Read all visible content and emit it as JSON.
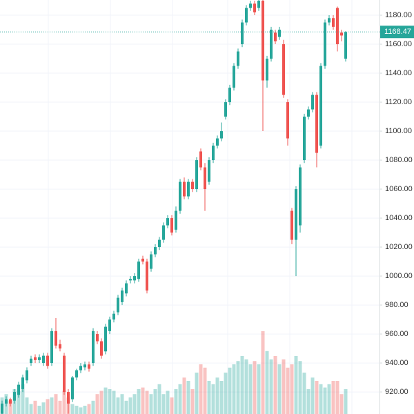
{
  "chart_data": {
    "type": "candlestick",
    "open": [
      905,
      912,
      915,
      914,
      918,
      922,
      928,
      940,
      944,
      942,
      940,
      945,
      940,
      962,
      953,
      945,
      920,
      915,
      930,
      935,
      937,
      939,
      940,
      960,
      955,
      948,
      962,
      970,
      975,
      982,
      988,
      997,
      997,
      998,
      1012,
      1010,
      1005,
      1015,
      1020,
      1025,
      1035,
      1040,
      1032,
      1045,
      1065,
      1055,
      1065,
      1060,
      1086,
      1075,
      1065,
      1080,
      1090,
      1095,
      1110,
      1120,
      1130,
      1145,
      1160,
      1175,
      1185,
      1188,
      1185,
      1190,
      1135,
      1150,
      1168,
      1165,
      1160,
      1120,
      1045,
      1025,
      1035,
      1080,
      1110,
      1115,
      1125,
      1090,
      1145,
      1175,
      1178,
      1185,
      1168,
      1150
    ],
    "high": [
      914,
      917,
      916,
      922,
      927,
      932,
      937,
      945,
      946,
      946,
      947,
      947,
      964,
      971,
      956,
      947,
      922,
      931,
      936,
      940,
      941,
      941,
      964,
      962,
      957,
      967,
      972,
      976,
      987,
      992,
      997,
      1000,
      1002,
      1012,
      1014,
      1012,
      1017,
      1022,
      1027,
      1037,
      1042,
      1042,
      1048,
      1067,
      1068,
      1067,
      1067,
      1082,
      1088,
      1078,
      1082,
      1092,
      1097,
      1106,
      1122,
      1132,
      1147,
      1157,
      1177,
      1187,
      1190,
      1190,
      1191,
      1191,
      1152,
      1172,
      1170,
      1172,
      1163,
      1122,
      1047,
      1062,
      1077,
      1112,
      1117,
      1127,
      1127,
      1147,
      1177,
      1180,
      1180,
      1186,
      1170,
      1169
    ],
    "low": [
      903,
      910,
      910,
      912,
      916,
      920,
      926,
      938,
      940,
      940,
      938,
      936,
      938,
      950,
      948,
      918,
      905,
      913,
      928,
      933,
      935,
      934,
      938,
      953,
      943,
      946,
      960,
      968,
      973,
      980,
      986,
      995,
      995,
      996,
      1008,
      988,
      1003,
      1013,
      1018,
      1023,
      1033,
      1028,
      1030,
      1043,
      1053,
      1053,
      1058,
      1058,
      1073,
      1045,
      1063,
      1078,
      1088,
      1093,
      1108,
      1118,
      1128,
      1143,
      1158,
      1173,
      1183,
      1180,
      1183,
      1100,
      1130,
      1148,
      1160,
      1163,
      1123,
      1090,
      1022,
      1000,
      1030,
      1078,
      1108,
      1113,
      1075,
      1088,
      1143,
      1173,
      1170,
      1155,
      1162,
      1148
    ],
    "close": [
      912,
      915,
      912,
      920,
      925,
      930,
      935,
      943,
      942,
      944,
      945,
      938,
      962,
      952,
      950,
      920,
      912,
      930,
      935,
      938,
      939,
      936,
      962,
      955,
      945,
      965,
      970,
      974,
      985,
      990,
      995,
      998,
      1000,
      1010,
      1010,
      990,
      1015,
      1020,
      1025,
      1035,
      1040,
      1030,
      1045,
      1065,
      1055,
      1065,
      1060,
      1080,
      1075,
      1060,
      1080,
      1090,
      1095,
      1100,
      1120,
      1130,
      1145,
      1155,
      1175,
      1185,
      1188,
      1182,
      1190,
      1135,
      1150,
      1170,
      1162,
      1170,
      1125,
      1095,
      1025,
      1060,
      1075,
      1110,
      1115,
      1125,
      1085,
      1145,
      1175,
      1178,
      1172,
      1160,
      1166,
      1168.47
    ],
    "volume": [
      10,
      12,
      8,
      15,
      14,
      18,
      10,
      6,
      8,
      5,
      7,
      9,
      10,
      12,
      8,
      14,
      10,
      6,
      5,
      4,
      5,
      6,
      8,
      12,
      14,
      16,
      15,
      14,
      10,
      12,
      8,
      10,
      12,
      15,
      16,
      14,
      12,
      15,
      18,
      12,
      14,
      10,
      15,
      18,
      22,
      20,
      15,
      25,
      30,
      28,
      20,
      18,
      22,
      20,
      25,
      28,
      30,
      32,
      35,
      33,
      30,
      32,
      30,
      50,
      38,
      33,
      35,
      30,
      33,
      28,
      30,
      35,
      32,
      25,
      15,
      22,
      20,
      18,
      16,
      18,
      20,
      20,
      12,
      15
    ],
    "up_color": "#26a69a",
    "down_color": "#ef5350",
    "ylim": [
      904.8,
      1190.5
    ],
    "yticks": [
      {
        "value": 920,
        "label": "920.00"
      },
      {
        "value": 940,
        "label": "940.00"
      },
      {
        "value": 960,
        "label": "960.00"
      },
      {
        "value": 980,
        "label": "980.00"
      },
      {
        "value": 1000,
        "label": "1000.00"
      },
      {
        "value": 1020,
        "label": "1020.00"
      },
      {
        "value": 1040,
        "label": "1040.00"
      },
      {
        "value": 1060,
        "label": "1060.00"
      },
      {
        "value": 1080,
        "label": "1080.00"
      },
      {
        "value": 1100,
        "label": "1100.00"
      },
      {
        "value": 1120,
        "label": "1120.00"
      },
      {
        "value": 1140,
        "label": "1140.00"
      },
      {
        "value": 1160,
        "label": "1160.00"
      },
      {
        "value": 1180,
        "label": "1180.00"
      }
    ],
    "volume_lim": [
      0,
      100
    ],
    "last_price": 1168.47,
    "grid": true
  }
}
